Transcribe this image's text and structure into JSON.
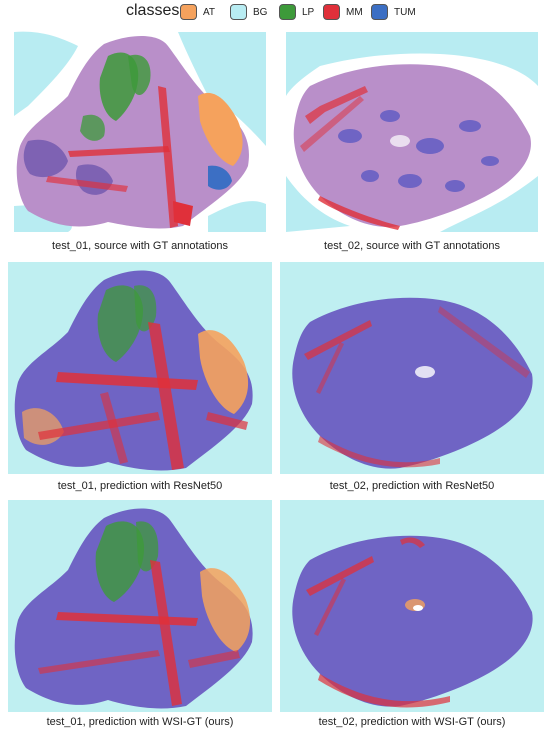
{
  "legend": {
    "title": "classes:",
    "items": [
      {
        "code": "AT",
        "color": "#f5a25d"
      },
      {
        "code": "BG",
        "color": "#b8ecf2"
      },
      {
        "code": "LP",
        "color": "#3d9a3a"
      },
      {
        "code": "MM",
        "color": "#e0303a"
      },
      {
        "code": "TUM",
        "color": "#3c6fc4"
      }
    ]
  },
  "colors": {
    "tissue_he": "#b98fc9",
    "tissue_dark": "#7e62b3",
    "pred_tum": "#6f64c4",
    "pred_bg": "#bfeff1"
  },
  "captions": {
    "row1_left": "test_01, source with GT annotations",
    "row1_right": "test_02, source with GT annotations",
    "row2_left": "test_01, prediction with ResNet50",
    "row2_right": "test_02, prediction with ResNet50",
    "row3_left": "test_01, prediction with WSI-GT (ours)",
    "row3_right": "test_02, prediction with WSI-GT (ours)"
  }
}
